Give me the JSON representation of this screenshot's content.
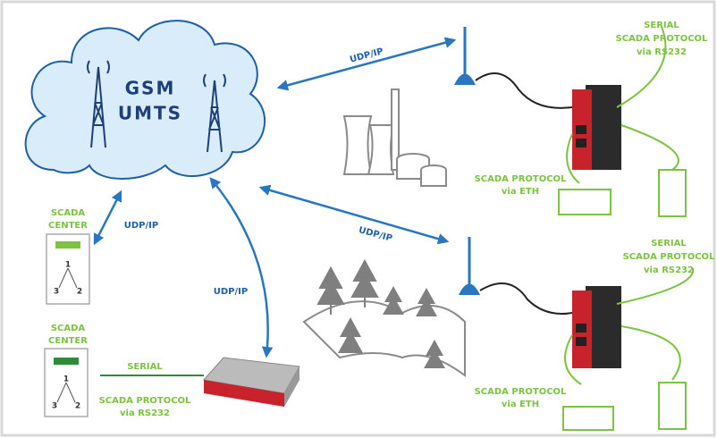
{
  "cloud": {
    "lines": [
      "GSM",
      "UMTS"
    ]
  },
  "links": [
    {
      "label": "UDP/IP"
    },
    {
      "label": "UDP/IP"
    },
    {
      "label": "UDP/IP"
    },
    {
      "label": "UDP/IP"
    }
  ],
  "sites": [
    {
      "serial": [
        "SERIAL",
        "SCADA PROTOCOL",
        "via RS232"
      ],
      "eth": [
        "SCADA PROTOCOL",
        "via ETH"
      ]
    },
    {
      "serial": [
        "SERIAL",
        "SCADA PROTOCOL",
        "via RS232"
      ],
      "eth": [
        "SCADA PROTOCOL",
        "via ETH"
      ]
    }
  ],
  "centers": [
    {
      "title": [
        "SCADA",
        "CENTER"
      ],
      "nodes": [
        "1",
        "3",
        "2"
      ]
    },
    {
      "title": [
        "SCADA",
        "CENTER"
      ],
      "nodes": [
        "1",
        "3",
        "2"
      ]
    }
  ],
  "local_link": {
    "top": "SERIAL",
    "bottom": [
      "SCADA PROTOCOL",
      "via RS232"
    ]
  }
}
